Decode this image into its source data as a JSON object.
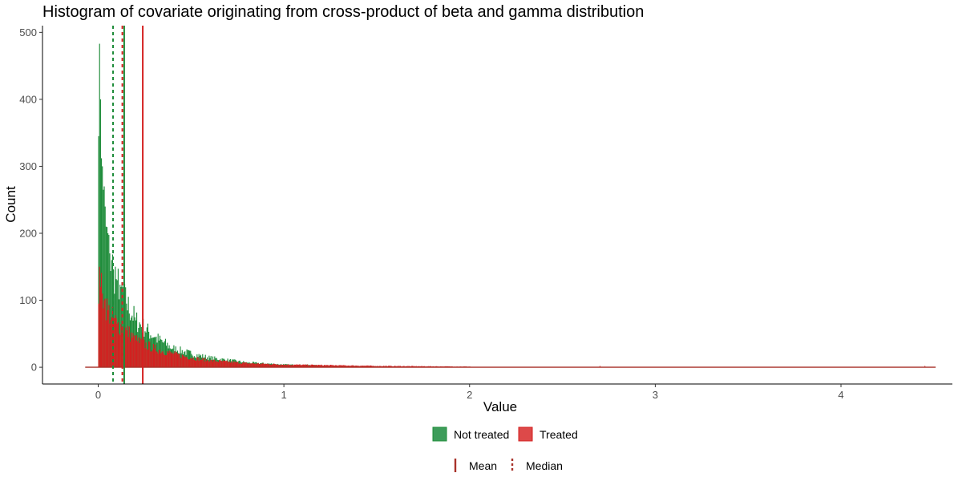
{
  "chart_data": {
    "type": "histogram",
    "title": "Histogram of covariate originating from cross-product of beta and gamma distribution",
    "xlabel": "Value",
    "ylabel": "Count",
    "xlim": [
      -0.3,
      4.6
    ],
    "ylim": [
      -25,
      510
    ],
    "x_ticks": [
      0,
      1,
      2,
      3,
      4
    ],
    "x_tick_labels": [
      "0",
      "1",
      "2",
      "3",
      "4"
    ],
    "y_ticks": [
      0,
      100,
      200,
      300,
      400,
      500
    ],
    "y_tick_labels": [
      "0",
      "100",
      "200",
      "300",
      "400",
      "500"
    ],
    "grid": false,
    "bin_width": 0.005,
    "baseline_x_range": [
      -0.07,
      4.51
    ],
    "series": [
      {
        "name": "Not treated",
        "color": "#1e8c3a",
        "peak_bins": [
          {
            "x": 0.0,
            "count": 345
          },
          {
            "x": 0.005,
            "count": 483
          },
          {
            "x": 0.01,
            "count": 400
          },
          {
            "x": 0.015,
            "count": 312
          },
          {
            "x": 0.02,
            "count": 300
          },
          {
            "x": 0.025,
            "count": 265
          },
          {
            "x": 0.03,
            "count": 270
          },
          {
            "x": 0.035,
            "count": 240
          },
          {
            "x": 0.04,
            "count": 210
          },
          {
            "x": 0.05,
            "count": 200
          },
          {
            "x": 0.06,
            "count": 170
          },
          {
            "x": 0.07,
            "count": 160
          },
          {
            "x": 0.08,
            "count": 145
          },
          {
            "x": 0.1,
            "count": 130
          },
          {
            "x": 0.12,
            "count": 120
          },
          {
            "x": 0.15,
            "count": 95
          },
          {
            "x": 0.2,
            "count": 70
          },
          {
            "x": 0.3,
            "count": 45
          },
          {
            "x": 0.4,
            "count": 28
          },
          {
            "x": 0.5,
            "count": 20
          },
          {
            "x": 0.6,
            "count": 14
          },
          {
            "x": 0.8,
            "count": 7
          },
          {
            "x": 1.0,
            "count": 4
          },
          {
            "x": 1.3,
            "count": 2
          },
          {
            "x": 1.6,
            "count": 1
          }
        ],
        "mean": 0.14,
        "median": 0.08
      },
      {
        "name": "Treated",
        "color": "#d42020",
        "peak_bins": [
          {
            "x": 0.0,
            "count": 95
          },
          {
            "x": 0.005,
            "count": 150
          },
          {
            "x": 0.01,
            "count": 120
          },
          {
            "x": 0.02,
            "count": 110
          },
          {
            "x": 0.03,
            "count": 100
          },
          {
            "x": 0.05,
            "count": 85
          },
          {
            "x": 0.07,
            "count": 75
          },
          {
            "x": 0.1,
            "count": 65
          },
          {
            "x": 0.15,
            "count": 55
          },
          {
            "x": 0.2,
            "count": 40
          },
          {
            "x": 0.3,
            "count": 28
          },
          {
            "x": 0.4,
            "count": 20
          },
          {
            "x": 0.5,
            "count": 14
          },
          {
            "x": 0.6,
            "count": 10
          },
          {
            "x": 0.8,
            "count": 6
          },
          {
            "x": 1.0,
            "count": 4
          },
          {
            "x": 1.5,
            "count": 2
          },
          {
            "x": 2.0,
            "count": 1
          },
          {
            "x": 2.7,
            "count": 1
          },
          {
            "x": 4.45,
            "count": 1
          }
        ],
        "mean": 0.24,
        "median": 0.13
      }
    ],
    "legend_fill": {
      "placement": "bottom",
      "items": [
        {
          "label": "Not treated",
          "color": "#3d9c5a"
        },
        {
          "label": "Treated",
          "color": "#dd4949"
        }
      ]
    },
    "legend_linetype": {
      "placement": "bottom",
      "color": "#a8322a",
      "items": [
        {
          "label": "Mean",
          "style": "solid"
        },
        {
          "label": "Median",
          "style": "dotted"
        }
      ]
    }
  }
}
